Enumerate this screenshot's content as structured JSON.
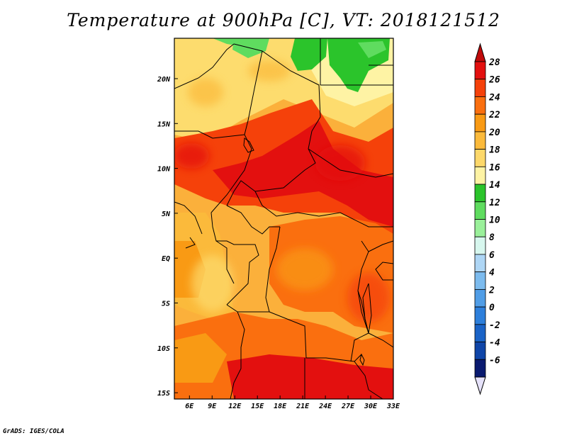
{
  "title": "Temperature at 900hPa [C], VT: 2018121512",
  "footer": "GrADS: IGES/COLA",
  "map": {
    "lon_ticks": [
      "6E",
      "9E",
      "12E",
      "15E",
      "18E",
      "21E",
      "24E",
      "27E",
      "30E",
      "33E"
    ],
    "lat_ticks": [
      "20N",
      "15N",
      "10N",
      "5N",
      "EQ",
      "5S",
      "10S",
      "15S"
    ],
    "lon_range": [
      4,
      33
    ],
    "lat_range": [
      -15.7,
      24.5
    ]
  },
  "colorbar": {
    "levels": [
      "28",
      "26",
      "24",
      "22",
      "20",
      "18",
      "16",
      "14",
      "12",
      "10",
      "8",
      "6",
      "4",
      "2",
      "0",
      "-2",
      "-4",
      "-6"
    ],
    "colors": [
      "#e3100f",
      "#f5410a",
      "#fa6f0f",
      "#f99a14",
      "#fbba3b",
      "#fdd86a",
      "#fef3a4",
      "#2bc42b",
      "#5fdc5f",
      "#9af09a",
      "#d7f7ee",
      "#aed6f5",
      "#7cbbee",
      "#509de6",
      "#2d7fdb",
      "#1a63c7",
      "#0f45a8",
      "#0a1a70"
    ],
    "top_arrow_color": "#c00a0a",
    "bottom_arrow_color": "#e6e2fa"
  }
}
